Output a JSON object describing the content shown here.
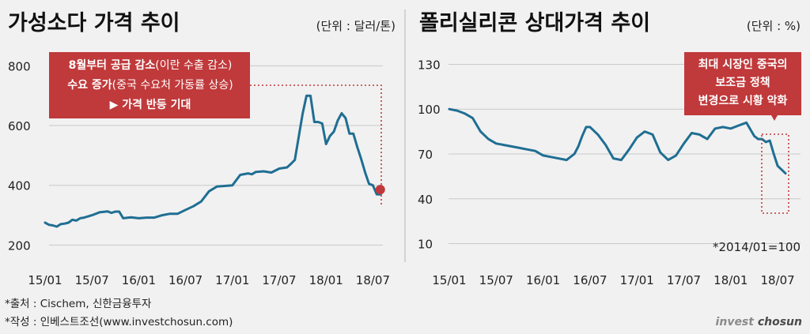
{
  "chart_data": [
    {
      "type": "line",
      "title": "가성소다 가격 추이",
      "unit": "(단위 : 달러/톤)",
      "ylim": [
        180,
        830
      ],
      "yticks": [
        800,
        600,
        400,
        200
      ],
      "xticks": [
        "15/01",
        "15/07",
        "16/01",
        "16/07",
        "17/01",
        "17/07",
        "18/01",
        "18/07"
      ],
      "xstart": "2015-01",
      "grid": true,
      "callout": {
        "line1_bold": "8월부터 공급 감소",
        "line1_rest": "(이란 수출 감소)",
        "line2_bold": "수요 증가",
        "line2_rest": "(중국 수요처 가동률 상승)",
        "line3": "▶ 가격 반등 기대",
        "color": "#c0393b"
      },
      "end_marker_color": "#c0393b",
      "series": [
        {
          "x": [
            0,
            0.5,
            1,
            1.5,
            2,
            2.5,
            3,
            3.5,
            4,
            4.5,
            5,
            6,
            7,
            8,
            8.5,
            9,
            9.5,
            10,
            11,
            12,
            13,
            14,
            15,
            16,
            17,
            18,
            19,
            20,
            21,
            22,
            23,
            24,
            25,
            26,
            26.5,
            27,
            28,
            29,
            30,
            31,
            31.5,
            32,
            33,
            33.5,
            34,
            34.5,
            35,
            35.5,
            36,
            36.5,
            37,
            37.5,
            38,
            38.5,
            39,
            39.5,
            40,
            40.5,
            41,
            41.5,
            42,
            42.5,
            43
          ],
          "y": [
            275,
            268,
            266,
            262,
            270,
            272,
            275,
            285,
            282,
            290,
            292,
            300,
            310,
            313,
            308,
            312,
            312,
            290,
            293,
            290,
            292,
            292,
            300,
            305,
            305,
            318,
            330,
            346,
            380,
            396,
            398,
            400,
            435,
            440,
            437,
            445,
            447,
            443,
            456,
            460,
            472,
            485,
            640,
            700,
            700,
            612,
            612,
            607,
            538,
            565,
            580,
            617,
            641,
            625,
            573,
            573,
            528,
            488,
            444,
            405,
            400,
            370,
            370
          ],
          "color": "#1f6e92"
        }
      ]
    },
    {
      "type": "line",
      "title": "폴리실리콘 상대가격 추이",
      "unit": "(단위 : %)",
      "ylim": [
        5,
        135
      ],
      "yticks": [
        130,
        100,
        70,
        40,
        10
      ],
      "xticks": [
        "15/01",
        "15/07",
        "16/01",
        "16/07",
        "17/01",
        "17/07",
        "18/01",
        "18/07"
      ],
      "xstart": "2015-01",
      "grid": true,
      "base_note": "*2014/01=100",
      "callout": {
        "line1": "최대 시장인 중국의",
        "line2": "보조금 정책",
        "line3": "변경으로 시황 악화",
        "color": "#c0393b"
      },
      "series": [
        {
          "x": [
            0,
            1,
            2,
            3,
            4,
            5,
            6,
            7,
            8,
            9,
            10,
            11,
            12,
            13,
            14,
            15,
            16,
            16.5,
            17,
            17.5,
            18,
            19,
            20,
            21,
            22,
            23,
            24,
            25,
            26,
            27,
            28,
            29,
            30,
            31,
            32,
            33,
            34,
            35,
            36,
            37,
            38,
            39,
            39.5,
            40,
            40.5,
            41,
            41.5,
            42,
            43
          ],
          "y": [
            100,
            99,
            97,
            94,
            85,
            80,
            77,
            76,
            75,
            74,
            73,
            72,
            69,
            68,
            67,
            66,
            70,
            75,
            82,
            88,
            88,
            83,
            76,
            67,
            66,
            73,
            81,
            85,
            83,
            71,
            66,
            69,
            77,
            84,
            83,
            80,
            87,
            88,
            87,
            89,
            91,
            82,
            80,
            80,
            78,
            79,
            70,
            62,
            57
          ],
          "color": "#1f6e92"
        }
      ]
    }
  ],
  "footer": {
    "source": "*출처 : Cischem, 신한금융투자",
    "author": "*작성 : 인베스트조선(www.investchosun.com)"
  },
  "brand": {
    "part1": "invest ",
    "part2": "chosun"
  }
}
